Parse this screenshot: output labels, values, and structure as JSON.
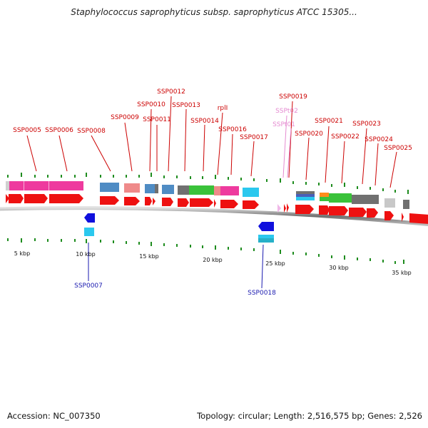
{
  "title": "Staphylococcus saprophyticus subsp. saprophyticus ATCC 15305...",
  "footer": {
    "accession": "Accession: NC_007350",
    "summary": "Topology: circular; Length: 2,516,575 bp; Genes: 2,526"
  },
  "kbp_labels": [
    "5 kbp",
    "10 kbp",
    "15 kbp",
    "20 kbp",
    "25 kbp",
    "30 kbp",
    "35 kbp"
  ],
  "gene_labels_top": [
    {
      "text": "SSP0005",
      "color": "#cc0000"
    },
    {
      "text": "SSP0006",
      "color": "#cc0000"
    },
    {
      "text": "SSP0008",
      "color": "#cc0000"
    },
    {
      "text": "SSP0009",
      "color": "#cc0000"
    },
    {
      "text": "SSP0010",
      "color": "#cc0000"
    },
    {
      "text": "SSP0011",
      "color": "#cc0000"
    },
    {
      "text": "SSP0012",
      "color": "#cc0000"
    },
    {
      "text": "SSP0013",
      "color": "#cc0000"
    },
    {
      "text": "SSP0014",
      "color": "#cc0000"
    },
    {
      "text": "rplI",
      "color": "#cc0000"
    },
    {
      "text": "SSP0016",
      "color": "#cc0000"
    },
    {
      "text": "SSP0017",
      "color": "#cc0000"
    },
    {
      "text": "SSP0019",
      "color": "#cc0000"
    },
    {
      "text": "SSPt02",
      "color": "#e58bd1"
    },
    {
      "text": "SSPt01",
      "color": "#e58bd1"
    },
    {
      "text": "SSP0020",
      "color": "#cc0000"
    },
    {
      "text": "SSP0021",
      "color": "#cc0000"
    },
    {
      "text": "SSP0022",
      "color": "#cc0000"
    },
    {
      "text": "SSP0023",
      "color": "#cc0000"
    },
    {
      "text": "SSP0024",
      "color": "#cc0000"
    },
    {
      "text": "SSP0025",
      "color": "#cc0000"
    }
  ],
  "gene_labels_bottom": [
    {
      "text": "SSP0007",
      "color": "#1a1ab0"
    },
    {
      "text": "SSP0018",
      "color": "#1a1ab0"
    }
  ]
}
